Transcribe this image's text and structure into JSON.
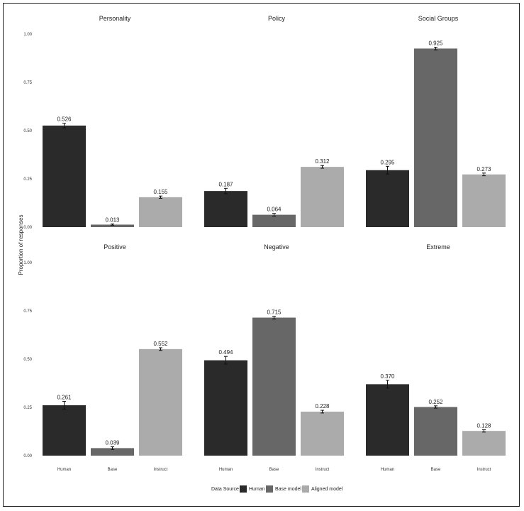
{
  "chart_data": {
    "type": "bar",
    "ylabel": "Proportion of responses",
    "ylim": [
      0,
      1
    ],
    "yticks": [
      "0.00",
      "0.25",
      "0.50",
      "0.75",
      "1.00"
    ],
    "categories": [
      "Human",
      "Base",
      "Instruct"
    ],
    "legend": {
      "title": "Data Source",
      "placement": "bottom",
      "entries": [
        {
          "name": "Human",
          "color": "#2a2a2a"
        },
        {
          "name": "Base model",
          "color": "#676767"
        },
        {
          "name": "Aligned model",
          "color": "#ababab"
        }
      ]
    },
    "colors": [
      "#2a2a2a",
      "#676767",
      "#ababab"
    ],
    "panels": [
      {
        "title": "Personality",
        "values": [
          0.526,
          0.013,
          0.155
        ],
        "labels": [
          "0.526",
          "0.013",
          "0.155"
        ],
        "errors": [
          0.012,
          0.003,
          0.006
        ]
      },
      {
        "title": "Policy",
        "values": [
          0.187,
          0.064,
          0.312
        ],
        "labels": [
          "0.187",
          "0.064",
          "0.312"
        ],
        "errors": [
          0.014,
          0.007,
          0.007
        ]
      },
      {
        "title": "Social Groups",
        "values": [
          0.295,
          0.925,
          0.273
        ],
        "labels": [
          "0.295",
          "0.925",
          "0.273"
        ],
        "errors": [
          0.02,
          0.007,
          0.007
        ]
      },
      {
        "title": "Positive",
        "values": [
          0.261,
          0.039,
          0.552
        ],
        "labels": [
          "0.261",
          "0.039",
          "0.552"
        ],
        "errors": [
          0.02,
          0.007,
          0.007
        ]
      },
      {
        "title": "Negative",
        "values": [
          0.494,
          0.715,
          0.228
        ],
        "labels": [
          "0.494",
          "0.715",
          "0.228"
        ],
        "errors": [
          0.02,
          0.007,
          0.007
        ]
      },
      {
        "title": "Extreme",
        "values": [
          0.37,
          0.252,
          0.128
        ],
        "labels": [
          "0.370",
          "0.252",
          "0.128"
        ],
        "errors": [
          0.02,
          0.006,
          0.006
        ]
      }
    ]
  }
}
